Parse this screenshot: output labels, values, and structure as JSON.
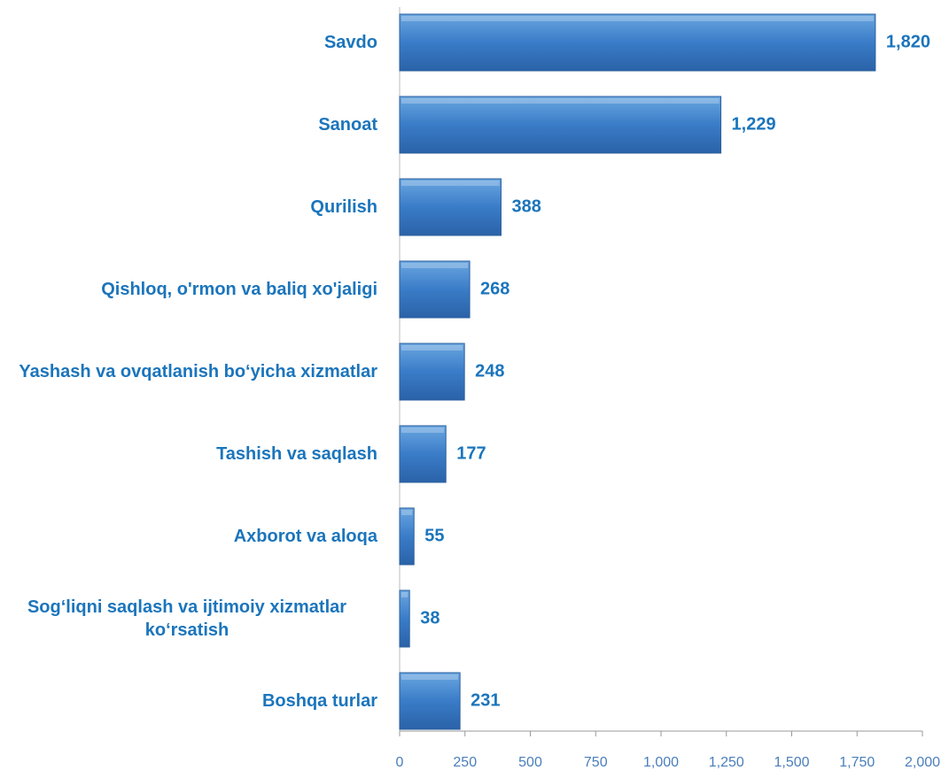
{
  "chart_data": {
    "type": "bar",
    "orientation": "horizontal",
    "categories": [
      "Savdo",
      "Sanoat",
      "Qurilish",
      "Qishloq, o'rmon va baliq xo'jaligi",
      "Yashash va ovqatlanish bo‘yicha xizmatlar",
      "Tashish va saqlash",
      "Axborot va aloqa",
      "Sog‘liqni saqlash va ijtimoiy xizmatlar ko‘rsatish",
      "Boshqa turlar"
    ],
    "values": [
      1820,
      1229,
      388,
      268,
      248,
      177,
      55,
      38,
      231
    ],
    "value_labels": [
      "1,820",
      "1,229",
      "388",
      "268",
      "248",
      "177",
      "55",
      "38",
      "231"
    ],
    "color": "#3a7cc8",
    "xlim": [
      0,
      2000
    ],
    "xticks": [
      0,
      250,
      500,
      750,
      {
        "value": 1000,
        "label": "1,000"
      },
      {
        "value": 1250,
        "label": "1,250"
      },
      {
        "value": 1500,
        "label": "1,500"
      },
      {
        "value": 1750,
        "label": "1,750"
      },
      {
        "value": 2000,
        "label": "2,000"
      }
    ]
  }
}
